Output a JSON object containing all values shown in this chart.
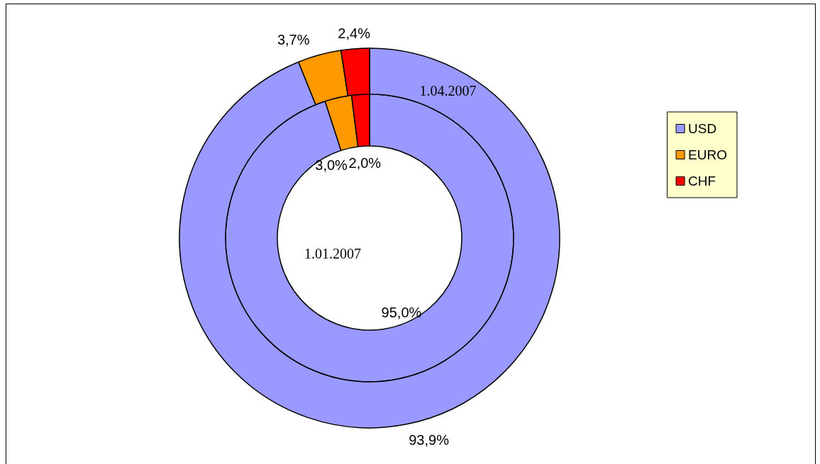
{
  "chart_data": {
    "type": "donut",
    "categories": [
      "USD",
      "EURO",
      "CHF"
    ],
    "colors": [
      "#9999ff",
      "#ff9900",
      "#ff0000"
    ],
    "series": [
      {
        "name": "1.01.2007",
        "values": [
          95.0,
          3.0,
          2.0
        ],
        "value_labels": [
          "95,0%",
          "3,0%",
          "2,0%"
        ]
      },
      {
        "name": "1.04.2007",
        "values": [
          93.9,
          3.7,
          2.4
        ],
        "value_labels": [
          "93,9%",
          "3,7%",
          "2,4%"
        ]
      }
    ],
    "legend": "right"
  }
}
